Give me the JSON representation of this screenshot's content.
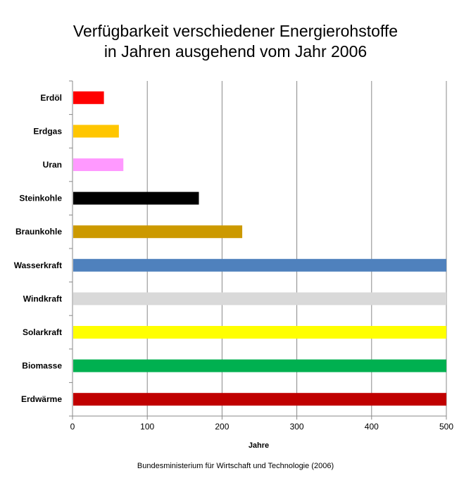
{
  "chart_data": {
    "type": "bar",
    "orientation": "horizontal",
    "title_lines": [
      "Verfügbarkeit verschiedener Energierohstoffe",
      "in Jahren ausgehend vom Jahr 2006"
    ],
    "categories": [
      "Erdöl",
      "Erdgas",
      "Uran",
      "Steinkohle",
      "Braunkohle",
      "Wasserkraft",
      "Windkraft",
      "Solarkraft",
      "Biomasse",
      "Erdwärme"
    ],
    "values": [
      42,
      62,
      68,
      169,
      227,
      500,
      500,
      500,
      500,
      500
    ],
    "colors": [
      "#ff0000",
      "#ffc600",
      "#ff99ff",
      "#000000",
      "#cc9900",
      "#4f81bd",
      "#d9d9d9",
      "#ffff00",
      "#00b050",
      "#c00000"
    ],
    "xlabel": "Jahre",
    "xlim": [
      0,
      500
    ],
    "xticks": [
      0,
      100,
      200,
      300,
      400,
      500
    ],
    "grid": "vertical",
    "legend": "none"
  },
  "source": "Bundesministerium für Wirtschaft und Technologie (2006)"
}
